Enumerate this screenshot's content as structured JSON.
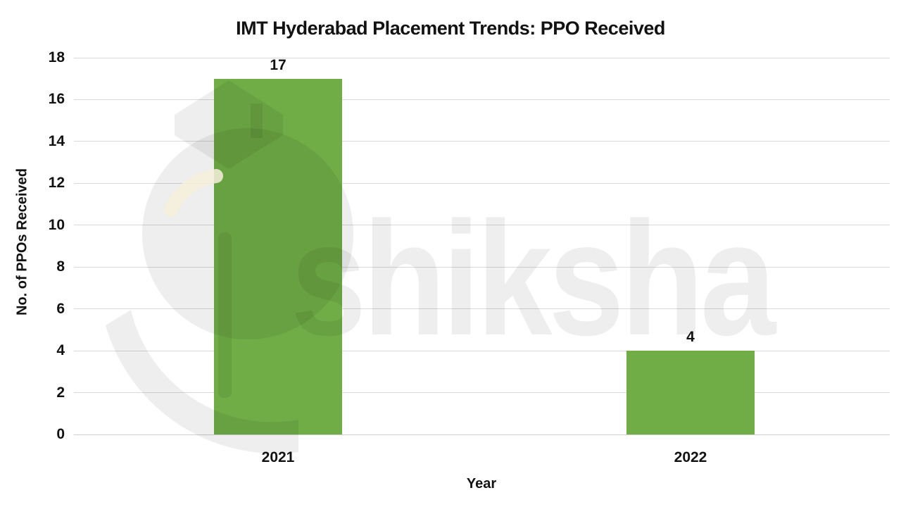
{
  "page": {
    "background": "#FFFFFF"
  },
  "chart_data": {
    "type": "bar",
    "title": "IMT Hyderabad Placement Trends: PPO Received",
    "categories": [
      "2021",
      "2022"
    ],
    "values": [
      17,
      4
    ],
    "data_labels": [
      "17",
      "4"
    ],
    "xlabel": "Year",
    "ylabel": "No. of PPOs Received",
    "ylim": [
      0,
      18
    ],
    "ytick_step": 2,
    "grid": true,
    "legend": false,
    "bar_color": "#70AD47"
  },
  "colors": {
    "background": "#FFFFFF",
    "bar_green": "#70AD47",
    "gridline": "#D9D9D9",
    "baseline": "#CFCFCF",
    "text": "#121212",
    "watermark": "rgba(0,0,0,0.065)",
    "watermark_cream": "#F6EEDA"
  },
  "watermark": {
    "text": "shiksha",
    "logo": "shiksha-graduation-cap-logo"
  }
}
